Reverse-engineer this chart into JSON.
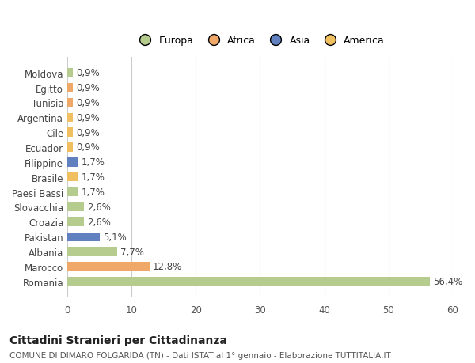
{
  "categories": [
    "Romania",
    "Marocco",
    "Albania",
    "Pakistan",
    "Croazia",
    "Slovacchia",
    "Paesi Bassi",
    "Brasile",
    "Filippine",
    "Ecuador",
    "Cile",
    "Argentina",
    "Tunisia",
    "Egitto",
    "Moldova"
  ],
  "values": [
    56.4,
    12.8,
    7.7,
    5.1,
    2.6,
    2.6,
    1.7,
    1.7,
    1.7,
    0.9,
    0.9,
    0.9,
    0.9,
    0.9,
    0.9
  ],
  "labels": [
    "56,4%",
    "12,8%",
    "7,7%",
    "5,1%",
    "2,6%",
    "2,6%",
    "1,7%",
    "1,7%",
    "1,7%",
    "0,9%",
    "0,9%",
    "0,9%",
    "0,9%",
    "0,9%",
    "0,9%"
  ],
  "colors": [
    "#b5cc8e",
    "#f0a868",
    "#b5cc8e",
    "#6080c0",
    "#b5cc8e",
    "#b5cc8e",
    "#b5cc8e",
    "#f0c060",
    "#6080c0",
    "#f0c060",
    "#f0c060",
    "#f0c060",
    "#f0a868",
    "#f0a868",
    "#b5cc8e"
  ],
  "legend_labels": [
    "Europa",
    "Africa",
    "Asia",
    "America"
  ],
  "legend_colors": [
    "#b5cc8e",
    "#f0a868",
    "#6080c0",
    "#f0c060"
  ],
  "title": "Cittadini Stranieri per Cittadinanza",
  "subtitle": "COMUNE DI DIMARO FOLGARIDA (TN) - Dati ISTAT al 1° gennaio - Elaborazione TUTTITALIA.IT",
  "xlim": [
    0,
    60
  ],
  "xticks": [
    0,
    10,
    20,
    30,
    40,
    50,
    60
  ],
  "background_color": "#ffffff",
  "grid_color": "#cccccc"
}
